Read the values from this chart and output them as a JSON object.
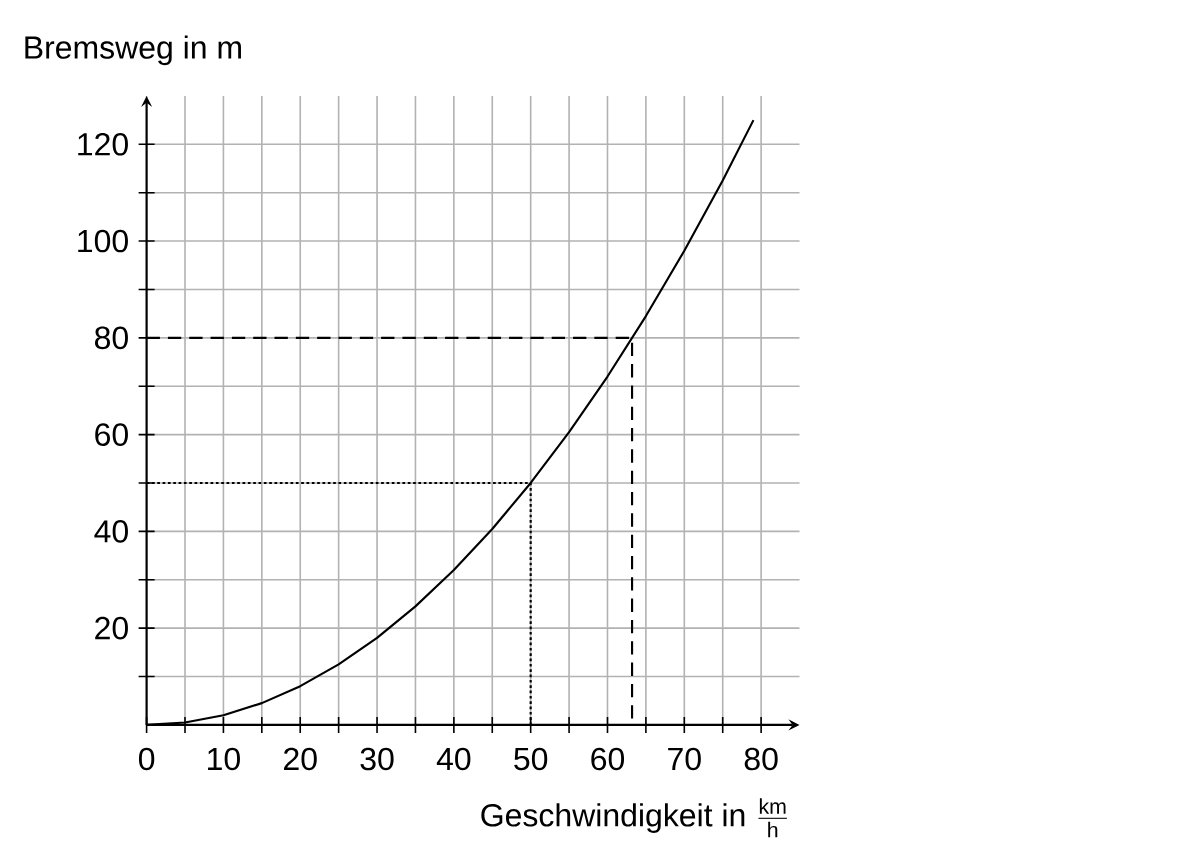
{
  "chart_data": {
    "type": "line",
    "xlabel": "\\mbox{Geschwindigkeit in }\\frac{\\mathrm{km}}{\\mathrm{h}}",
    "ylabel": "Bremsweg in m",
    "xlim": [
      0,
      85
    ],
    "ylim": [
      0,
      130
    ],
    "xticks": [
      {
        "value": 0,
        "label": "0"
      },
      {
        "value": 5,
        "label": null
      },
      10,
      {
        "value": 15,
        "label": null
      },
      20,
      {
        "value": 25,
        "label": null
      },
      30,
      {
        "value": 35,
        "label": null
      },
      40,
      {
        "value": 45,
        "label": null
      },
      50,
      {
        "value": 55,
        "label": null
      },
      60,
      {
        "value": 65,
        "label": null
      },
      70,
      {
        "value": 75,
        "label": null
      },
      80
    ],
    "yticks": [
      {
        "value": 10,
        "label": null
      },
      20,
      {
        "value": 30,
        "label": null
      },
      40,
      {
        "value": 50,
        "label": null
      },
      60,
      {
        "value": 70,
        "label": null
      },
      80,
      {
        "value": 90,
        "label": null
      },
      100,
      {
        "value": 110,
        "label": null
      },
      120
    ],
    "grid": true,
    "marker": "none",
    "line_style": "solid",
    "series": [
      {
        "color": "#000000",
        "x": [
          0,
          5,
          10,
          15,
          20,
          25,
          30,
          35,
          40,
          45,
          50,
          55,
          60,
          65,
          70,
          75,
          79
        ],
        "values": [
          0,
          0.5,
          2,
          4.5,
          8,
          12.5,
          18,
          24.5,
          32,
          40.5,
          50,
          60.5,
          72,
          84.5,
          98,
          112.5,
          125
        ]
      },
      {
        "color": "#000000",
        "line_style": "dashed",
        "x": [
          0,
          63.2,
          63.2
        ],
        "values": [
          80,
          80,
          0
        ]
      },
      {
        "color": "#000000",
        "line_style": "dotted",
        "x": [
          0,
          50,
          50
        ],
        "values": [
          50,
          50,
          0
        ]
      }
    ]
  }
}
